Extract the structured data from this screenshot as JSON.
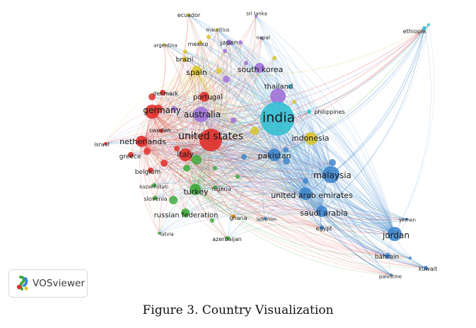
{
  "colors": {
    "cyan": "#35c0d3",
    "blue": "#3f86cc",
    "red": "#e0302b",
    "green": "#3dab3c",
    "purple": "#a072d8",
    "yellow": "#d8c531",
    "orange": "#e89b2a"
  },
  "nodes": [
    {
      "label": "india",
      "color": "cyan"
    },
    {
      "label": "ethiopia",
      "color": "cyan"
    },
    {
      "label": "philippines",
      "color": "cyan"
    },
    {
      "label": "malaysia",
      "color": "blue"
    },
    {
      "label": "pakistan",
      "color": "blue"
    },
    {
      "label": "united arab emirates",
      "color": "blue"
    },
    {
      "label": "saudi arabia",
      "color": "blue"
    },
    {
      "label": "jordan",
      "color": "blue"
    },
    {
      "label": "bahrain",
      "color": "blue"
    },
    {
      "label": "kuwait",
      "color": "blue"
    },
    {
      "label": "palestine",
      "color": "blue"
    },
    {
      "label": "yemen",
      "color": "blue"
    },
    {
      "label": "egypt",
      "color": "blue"
    },
    {
      "label": "lebanon",
      "color": "blue"
    },
    {
      "label": "united states",
      "color": "red"
    },
    {
      "label": "germany",
      "color": "red"
    },
    {
      "label": "netherlands",
      "color": "red"
    },
    {
      "label": "italy",
      "color": "red"
    },
    {
      "label": "denmark",
      "color": "red"
    },
    {
      "label": "sweden",
      "color": "red"
    },
    {
      "label": "greece",
      "color": "red"
    },
    {
      "label": "belgium",
      "color": "red"
    },
    {
      "label": "israel",
      "color": "red"
    },
    {
      "label": "portugal",
      "color": "red"
    },
    {
      "label": "turkey",
      "color": "green"
    },
    {
      "label": "russian federation",
      "color": "green"
    },
    {
      "label": "kazakhstan",
      "color": "green"
    },
    {
      "label": "slovenia",
      "color": "green"
    },
    {
      "label": "nigeria",
      "color": "green"
    },
    {
      "label": "latvia",
      "color": "green"
    },
    {
      "label": "azerbaijan",
      "color": "green"
    },
    {
      "label": "ghana",
      "color": "orange"
    },
    {
      "label": "australia",
      "color": "purple"
    },
    {
      "label": "thailand",
      "color": "purple"
    },
    {
      "label": "south korea",
      "color": "purple"
    },
    {
      "label": "japan",
      "color": "purple"
    },
    {
      "label": "sri lanka",
      "color": "purple"
    },
    {
      "label": "nepal",
      "color": "purple"
    },
    {
      "label": "indonesia",
      "color": "yellow"
    },
    {
      "label": "spain",
      "color": "yellow"
    },
    {
      "label": "brazil",
      "color": "yellow"
    },
    {
      "label": "mexico",
      "color": "yellow"
    },
    {
      "label": "argentina",
      "color": "yellow"
    },
    {
      "label": "ecuador",
      "color": "yellow"
    },
    {
      "label": "mauritius",
      "color": "yellow"
    }
  ],
  "logo": {
    "text": "VOSviewer",
    "icon": "vosviewer-logo-icon"
  },
  "caption": "Figure 3. Country Visualization"
}
